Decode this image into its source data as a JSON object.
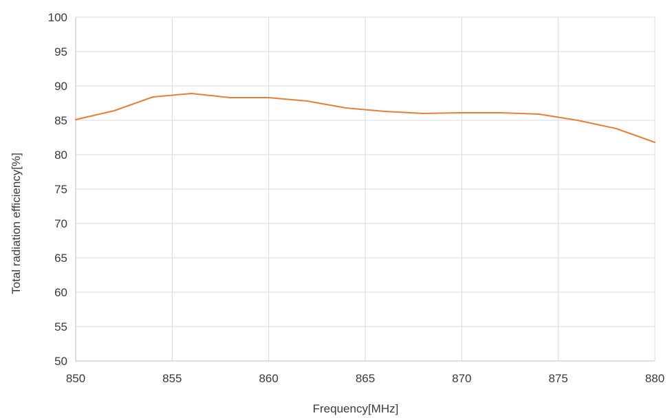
{
  "chart_data": {
    "type": "line",
    "title": "",
    "xlabel": "Frequency[MHz]",
    "ylabel": "Total radiation efficiency[%]",
    "xlim": [
      850,
      880
    ],
    "ylim": [
      50,
      100
    ],
    "x_ticks": [
      850,
      855,
      860,
      865,
      870,
      875,
      880
    ],
    "y_ticks": [
      50,
      55,
      60,
      65,
      70,
      75,
      80,
      85,
      90,
      95,
      100
    ],
    "grid": true,
    "legend": "none",
    "series": [
      {
        "color": "#ED7D31",
        "x": [
          850,
          852,
          854,
          856,
          858,
          860,
          862,
          864,
          866,
          868,
          870,
          872,
          874,
          876,
          878,
          880
        ],
        "y": [
          85.1,
          86.4,
          88.4,
          88.9,
          88.3,
          88.3,
          87.8,
          86.8,
          86.3,
          86.0,
          86.1,
          86.1,
          85.9,
          85.0,
          83.8,
          81.8
        ]
      }
    ]
  }
}
